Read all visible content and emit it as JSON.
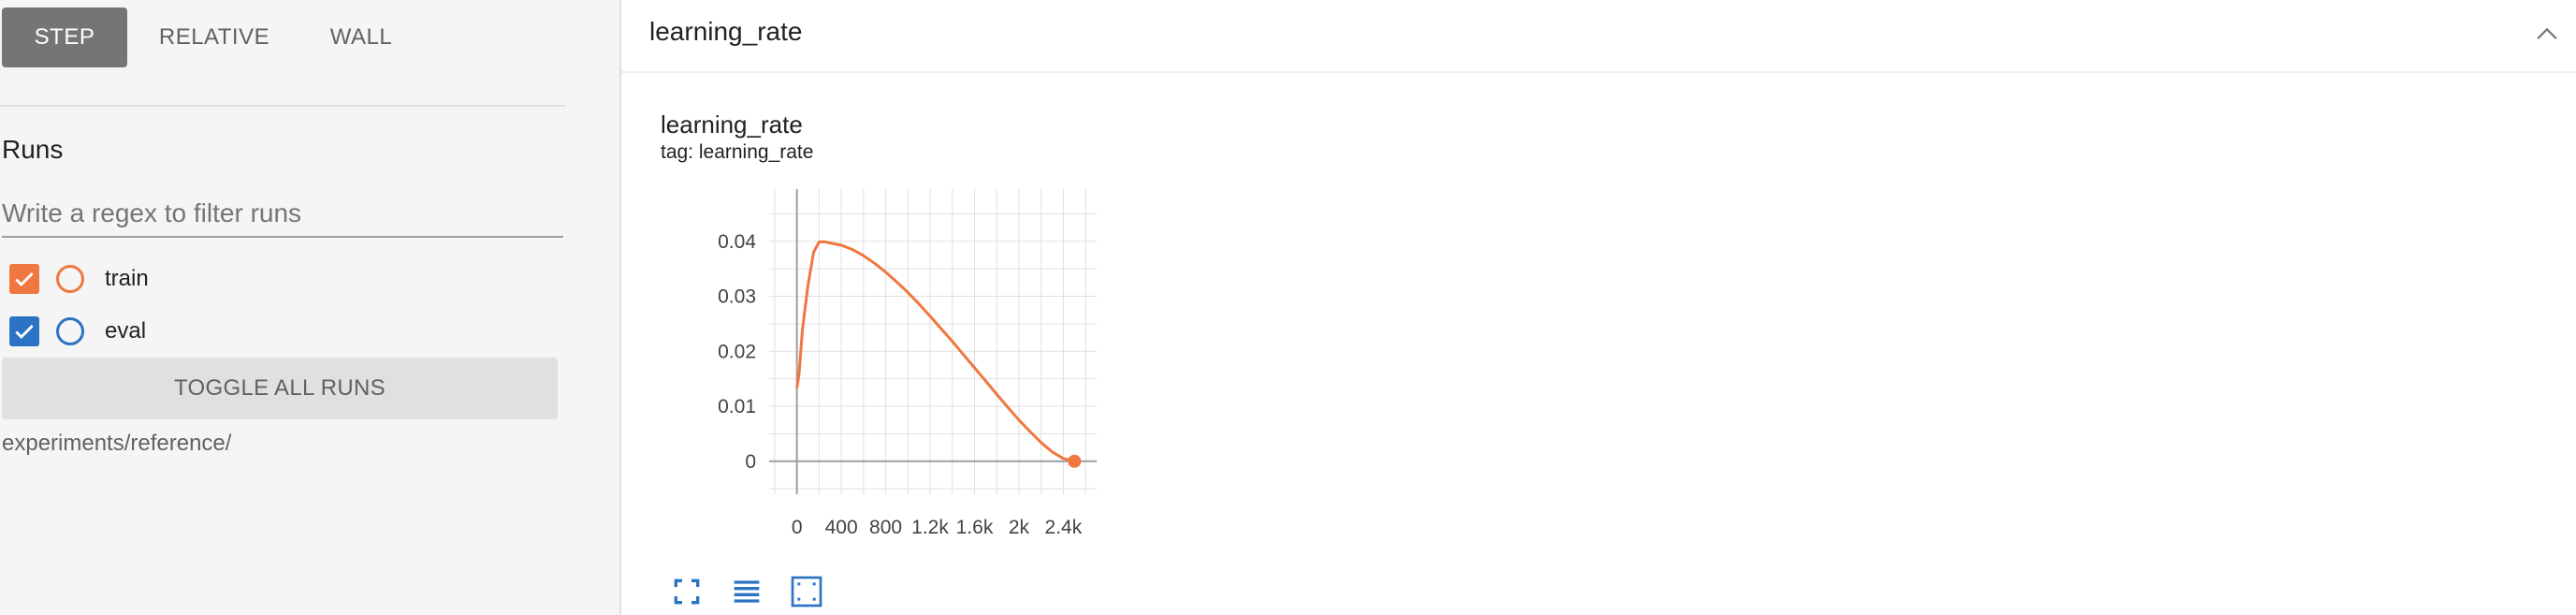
{
  "sidebar": {
    "xtype_buttons": [
      {
        "label": "STEP",
        "active": true
      },
      {
        "label": "RELATIVE",
        "active": false
      },
      {
        "label": "WALL",
        "active": false
      }
    ],
    "runs_title": "Runs",
    "regex_placeholder": "Write a regex to filter runs",
    "runs": [
      {
        "label": "train",
        "checked": true,
        "color": "#f0773f"
      },
      {
        "label": "eval",
        "checked": true,
        "color": "#2c73c4"
      }
    ],
    "toggle_all_label": "TOGGLE ALL RUNS",
    "logdir": "experiments/reference/"
  },
  "group": {
    "title": "learning_rate",
    "collapse_icon": "chevron-up-icon"
  },
  "card": {
    "title": "learning_rate",
    "tag": "tag: learning_rate",
    "tool_icons": [
      "expand-icon",
      "data-series-icon",
      "fit-domain-icon"
    ]
  },
  "chart_data": {
    "type": "line",
    "title": "learning_rate",
    "xlim": [
      -250,
      2700
    ],
    "ylim": [
      -0.006,
      0.0495
    ],
    "x_ticks": [
      0,
      400,
      800,
      1200,
      1600,
      2000,
      2400
    ],
    "x_tick_labels": [
      "0",
      "400",
      "800",
      "1.2k",
      "1.6k",
      "2k",
      "2.4k"
    ],
    "y_ticks": [
      0,
      0.01,
      0.02,
      0.03,
      0.04
    ],
    "y_tick_labels": [
      "0",
      "0.01",
      "0.02",
      "0.03",
      "0.04"
    ],
    "grid": true,
    "series": [
      {
        "name": "train",
        "color": "#f0773f",
        "x": [
          0,
          20,
          50,
          100,
          150,
          200,
          250,
          300,
          400,
          500,
          600,
          700,
          800,
          900,
          1000,
          1100,
          1200,
          1300,
          1400,
          1500,
          1600,
          1700,
          1800,
          1900,
          2000,
          2100,
          2200,
          2300,
          2400,
          2500
        ],
        "y": [
          0.0133,
          0.016,
          0.024,
          0.032,
          0.038,
          0.0399,
          0.0399,
          0.0397,
          0.0393,
          0.0385,
          0.0374,
          0.036,
          0.0344,
          0.0326,
          0.0307,
          0.0286,
          0.0264,
          0.0241,
          0.0218,
          0.0194,
          0.017,
          0.0146,
          0.0122,
          0.0098,
          0.0075,
          0.0054,
          0.0034,
          0.0017,
          0.0005,
          0.0
        ]
      }
    ]
  }
}
